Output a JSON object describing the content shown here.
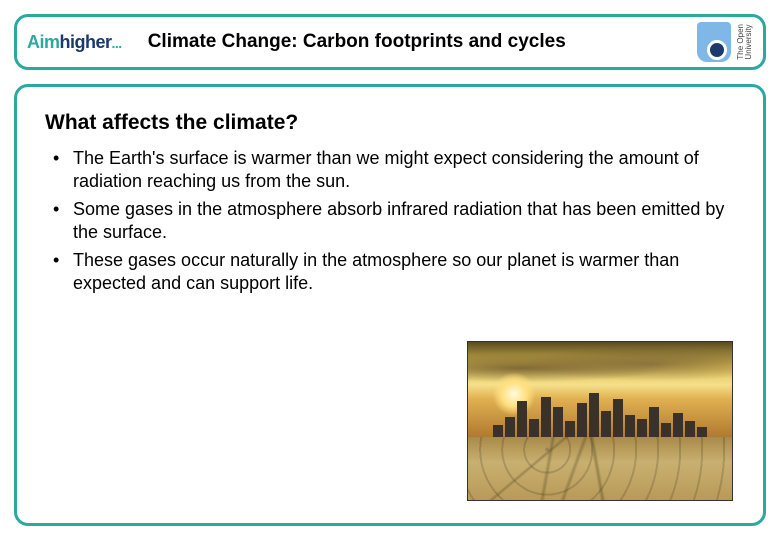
{
  "header": {
    "logo_part1": "Aim",
    "logo_part2": "higher",
    "logo_dots": "...",
    "title": "Climate Change: Carbon footprints and cycles",
    "ou_line1": "The Open",
    "ou_line2": "University"
  },
  "content": {
    "heading": "What affects the climate?",
    "bullets": [
      "The Earth's surface is warmer than we might expect considering the amount of radiation reaching us from the sun.",
      "Some gases in the atmosphere absorb infrared radiation that has been emitted by the surface.",
      "These gases occur naturally in the atmosphere so our planet is warmer than expected and can support life."
    ]
  },
  "colors": {
    "frame_border": "#2aa9a0",
    "text": "#000000",
    "logo_teal": "#2aa9a0",
    "logo_navy": "#1b3a6b"
  },
  "image": {
    "description": "city skyline under hazy golden sky with dried cracked ground in foreground",
    "building_heights": [
      12,
      20,
      36,
      18,
      40,
      30,
      16,
      34,
      44,
      26,
      38,
      22,
      18,
      30,
      14,
      24,
      16,
      10
    ]
  }
}
